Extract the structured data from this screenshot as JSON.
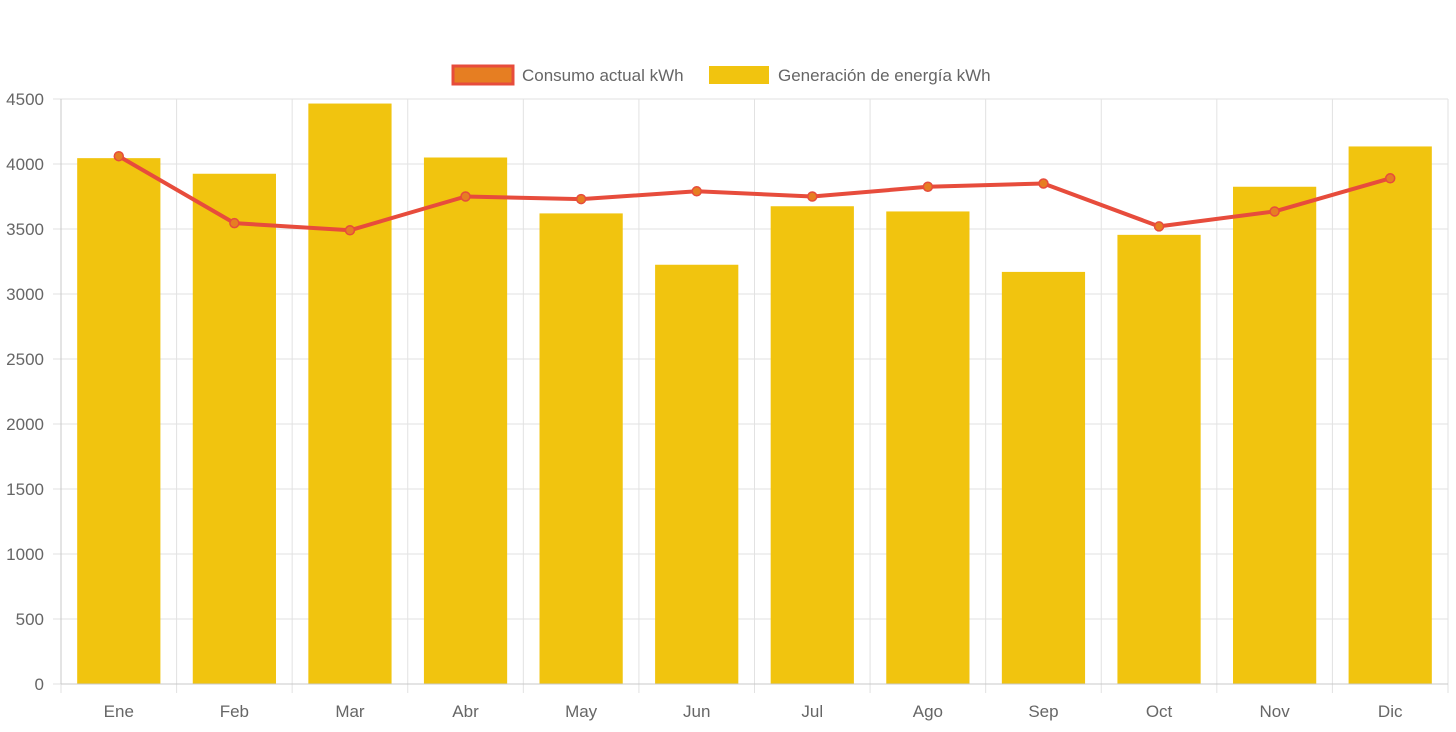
{
  "chart_data": {
    "type": "bar",
    "categories": [
      "Ene",
      "Feb",
      "Mar",
      "Abr",
      "May",
      "Jun",
      "Jul",
      "Ago",
      "Sep",
      "Oct",
      "Nov",
      "Dic"
    ],
    "ylim": [
      0,
      4500
    ],
    "yticks": [
      0,
      500,
      1000,
      1500,
      2000,
      2500,
      3000,
      3500,
      4000,
      4500
    ],
    "grid": true,
    "legend_position": "top-center",
    "series": [
      {
        "name": "Consumo actual kWh",
        "type": "line",
        "color": "#e74c3c",
        "point_color": "#e67e22",
        "values": [
          4060,
          3545,
          3490,
          3750,
          3730,
          3790,
          3750,
          3825,
          3850,
          3520,
          3635,
          3890
        ]
      },
      {
        "name": "Generación de energía kWh",
        "type": "bar",
        "color": "#f1c40f",
        "values": [
          4045,
          3925,
          4465,
          4050,
          3620,
          3225,
          3675,
          3635,
          3170,
          3455,
          3825,
          4135
        ]
      }
    ]
  }
}
